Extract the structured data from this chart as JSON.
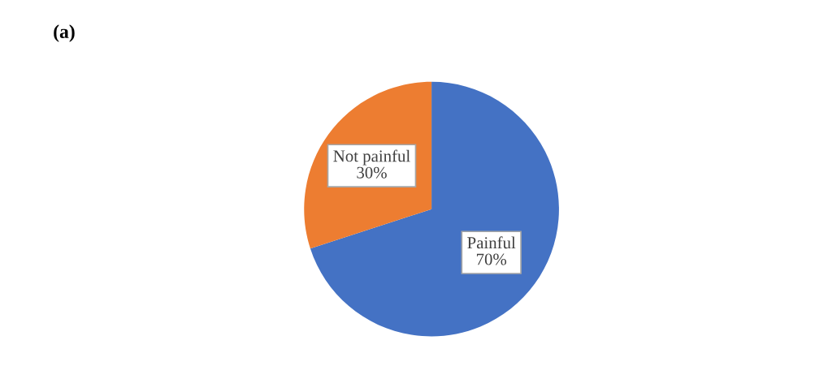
{
  "chart_data": {
    "type": "pie",
    "title": "(a)",
    "categories": [
      "Painful",
      "Not painful"
    ],
    "values": [
      70,
      30
    ],
    "value_labels": [
      "70%",
      "30%"
    ],
    "colors": [
      "#4472c4",
      "#ed7d31"
    ]
  }
}
